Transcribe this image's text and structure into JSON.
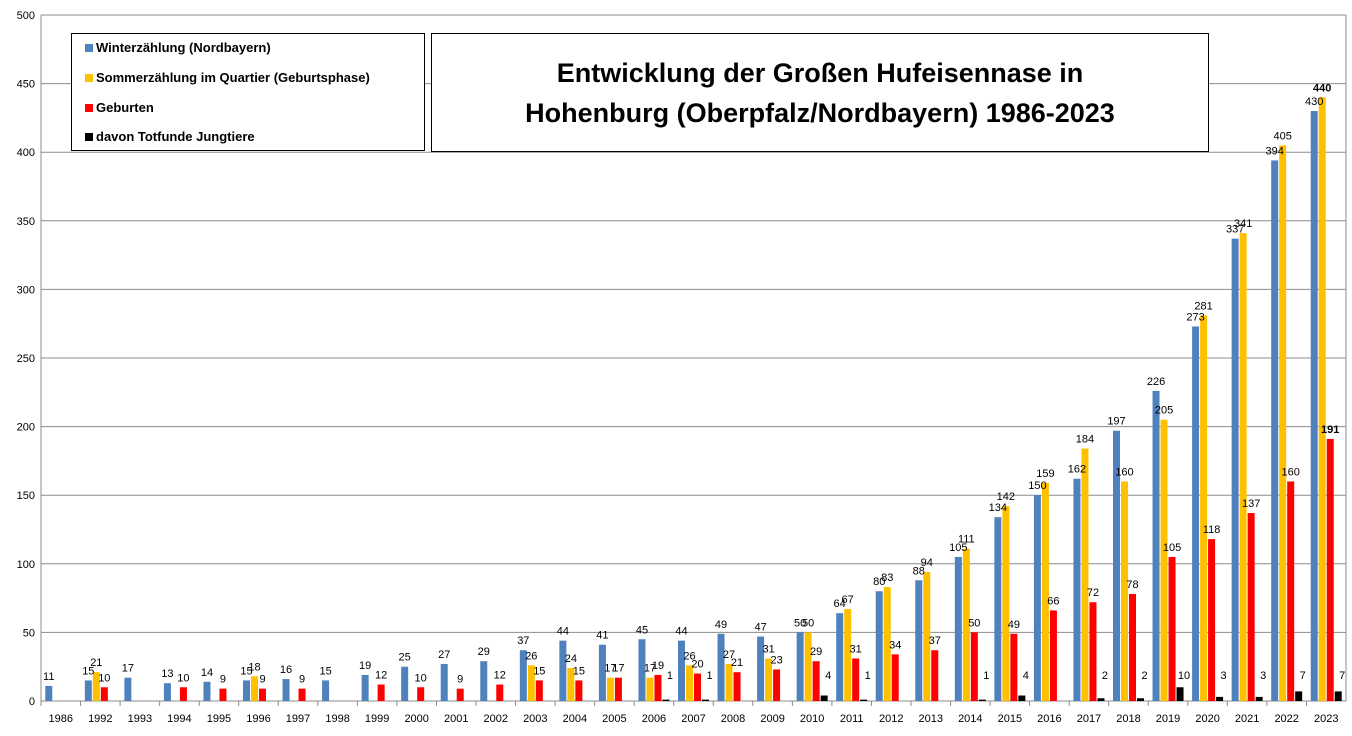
{
  "chart_data": {
    "type": "bar",
    "title_lines": [
      "Entwicklung der Großen Hufeisennase in",
      "Hohenburg (Oberpfalz/Nordbayern) 1986-2023"
    ],
    "ylim": [
      0,
      500
    ],
    "yticks": [
      0,
      50,
      100,
      150,
      200,
      250,
      300,
      350,
      400,
      450,
      500
    ],
    "grid": true,
    "legend_position": "top-left",
    "categories": [
      "1986",
      "1992",
      "1993",
      "1994",
      "1995",
      "1996",
      "1997",
      "1998",
      "1999",
      "2000",
      "2001",
      "2002",
      "2003",
      "2004",
      "2005",
      "2006",
      "2007",
      "2008",
      "2009",
      "2010",
      "2011",
      "2012",
      "2013",
      "2014",
      "2015",
      "2016",
      "2017",
      "2018",
      "2019",
      "2020",
      "2021",
      "2022",
      "2023"
    ],
    "series": [
      {
        "name": "Winterzählung (Nordbayern)",
        "color": "#4f81bd",
        "values": [
          11,
          15,
          17,
          13,
          14,
          15,
          16,
          15,
          19,
          25,
          27,
          29,
          37,
          44,
          41,
          45,
          44,
          49,
          47,
          50,
          64,
          80,
          88,
          105,
          134,
          150,
          162,
          197,
          226,
          273,
          337,
          394,
          430
        ]
      },
      {
        "name": "Sommerzählung im Quartier (Geburtsphase)",
        "color": "#ffc000",
        "values": [
          null,
          21,
          null,
          null,
          null,
          18,
          null,
          null,
          null,
          null,
          null,
          null,
          26,
          24,
          17,
          17,
          26,
          27,
          31,
          50,
          67,
          83,
          94,
          111,
          142,
          159,
          184,
          160,
          205,
          281,
          341,
          405,
          440
        ]
      },
      {
        "name": "Geburten",
        "color": "#ff0000",
        "values": [
          null,
          10,
          null,
          10,
          9,
          9,
          9,
          null,
          12,
          10,
          9,
          12,
          15,
          15,
          17,
          19,
          20,
          21,
          23,
          29,
          31,
          34,
          37,
          50,
          49,
          66,
          72,
          78,
          105,
          118,
          137,
          160,
          191
        ]
      },
      {
        "name": "davon Totfunde Jungtiere",
        "color": "#000000",
        "values": [
          null,
          null,
          null,
          null,
          null,
          null,
          null,
          null,
          null,
          null,
          null,
          null,
          null,
          null,
          null,
          1,
          1,
          null,
          null,
          4,
          1,
          null,
          null,
          1,
          4,
          null,
          2,
          2,
          10,
          3,
          3,
          7,
          7
        ]
      }
    ]
  }
}
